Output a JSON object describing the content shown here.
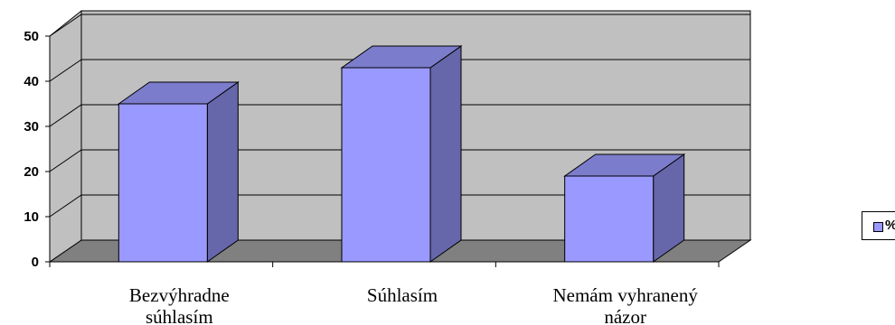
{
  "chart_data": {
    "type": "bar",
    "categories": [
      [
        "Bezvýhradne",
        "súhlasím"
      ],
      [
        "Súhlasím"
      ],
      [
        "Nemám vyhranený",
        "názor"
      ]
    ],
    "series": [
      {
        "name": "%",
        "values": [
          35,
          43,
          19
        ]
      }
    ],
    "ylim": [
      0,
      50
    ],
    "yticks": [
      "0",
      "10",
      "20",
      "30",
      "40",
      "50"
    ],
    "grid": true,
    "legend_position": "right",
    "colors": {
      "bar_front": "#9999ff",
      "bar_side": "#6666aa",
      "bar_top": "#7c7ccc",
      "wall": "#c0c0c0",
      "floor": "#808080"
    }
  }
}
